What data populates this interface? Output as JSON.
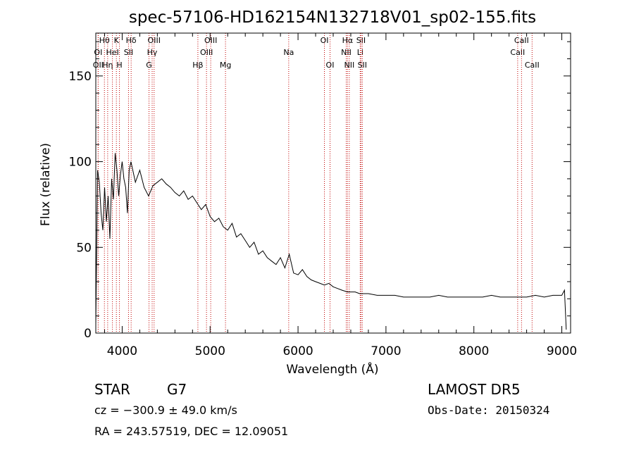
{
  "chart_data": {
    "type": "line",
    "title": "spec-57106-HD162154N132718V01_sp02-155.fits",
    "xlabel": "Wavelength (Å)",
    "ylabel": "Flux (relative)",
    "xlim": [
      3700,
      9100
    ],
    "ylim": [
      0,
      175
    ],
    "xticks": [
      "4000",
      "5000",
      "6000",
      "7000",
      "8000",
      "9000"
    ],
    "yticks": [
      "0",
      "50",
      "100",
      "150"
    ],
    "grid": false,
    "series": [
      {
        "x": [
          3700,
          3720,
          3740,
          3760,
          3780,
          3800,
          3820,
          3840,
          3860,
          3880,
          3900,
          3920,
          3940,
          3960,
          3980,
          4000,
          4020,
          4040,
          4060,
          4080,
          4100,
          4150,
          4200,
          4250,
          4300,
          4350,
          4400,
          4450,
          4500,
          4550,
          4600,
          4650,
          4700,
          4750,
          4800,
          4850,
          4900,
          4950,
          5000,
          5050,
          5100,
          5150,
          5200,
          5250,
          5300,
          5350,
          5400,
          5450,
          5500,
          5550,
          5600,
          5650,
          5700,
          5750,
          5800,
          5850,
          5900,
          5950,
          6000,
          6050,
          6100,
          6150,
          6200,
          6250,
          6300,
          6350,
          6400,
          6450,
          6500,
          6563,
          6600,
          6650,
          6700,
          6750,
          6800,
          6900,
          7000,
          7100,
          7200,
          7300,
          7400,
          7500,
          7600,
          7700,
          7800,
          7900,
          8000,
          8100,
          8200,
          8300,
          8400,
          8500,
          8600,
          8700,
          8800,
          8900,
          9000,
          9030,
          9050
        ],
        "y": [
          5,
          95,
          88,
          70,
          60,
          85,
          65,
          80,
          55,
          90,
          78,
          105,
          95,
          80,
          92,
          100,
          90,
          85,
          70,
          95,
          100,
          88,
          95,
          85,
          80,
          86,
          88,
          90,
          87,
          85,
          82,
          80,
          83,
          78,
          80,
          76,
          72,
          75,
          68,
          65,
          67,
          62,
          60,
          64,
          56,
          58,
          54,
          50,
          53,
          46,
          48,
          44,
          42,
          40,
          44,
          38,
          46,
          35,
          34,
          37,
          33,
          31,
          30,
          29,
          28,
          29,
          27,
          26,
          25,
          24,
          24,
          24,
          23,
          23,
          23,
          22,
          22,
          22,
          21,
          21,
          21,
          21,
          22,
          21,
          21,
          21,
          21,
          21,
          22,
          21,
          21,
          21,
          21,
          22,
          21,
          22,
          22,
          25,
          2
        ]
      }
    ],
    "lines": [
      {
        "label": "OII",
        "x": 3727,
        "row": 3
      },
      {
        "label": "OI",
        "x": 3727,
        "row": 2
      },
      {
        "label": "Hθ",
        "x": 3798,
        "row": 1
      },
      {
        "label": "Hη",
        "x": 3835,
        "row": 3
      },
      {
        "label": "HeI",
        "x": 3889,
        "row": 2
      },
      {
        "label": "K",
        "x": 3934,
        "row": 1
      },
      {
        "label": "H",
        "x": 3969,
        "row": 3
      },
      {
        "label": "SII",
        "x": 4072,
        "row": 2
      },
      {
        "label": "Hδ",
        "x": 4102,
        "row": 1
      },
      {
        "label": "G",
        "x": 4305,
        "row": 3
      },
      {
        "label": "Hγ",
        "x": 4341,
        "row": 2
      },
      {
        "label": "OIII",
        "x": 4363,
        "row": 1
      },
      {
        "label": "Hβ",
        "x": 4861,
        "row": 3
      },
      {
        "label": "OIII",
        "x": 4959,
        "row": 2
      },
      {
        "label": "OIII",
        "x": 5007,
        "row": 1
      },
      {
        "label": "Mg",
        "x": 5175,
        "row": 3
      },
      {
        "label": "Na",
        "x": 5894,
        "row": 2
      },
      {
        "label": "OI",
        "x": 6300,
        "row": 1
      },
      {
        "label": "OI",
        "x": 6364,
        "row": 3
      },
      {
        "label": "NII",
        "x": 6548,
        "row": 2
      },
      {
        "label": "Hα",
        "x": 6563,
        "row": 1
      },
      {
        "label": "NII",
        "x": 6583,
        "row": 3
      },
      {
        "label": "Li",
        "x": 6707,
        "row": 2
      },
      {
        "label": "SII",
        "x": 6716,
        "row": 1
      },
      {
        "label": "SII",
        "x": 6731,
        "row": 3
      },
      {
        "label": "CaII",
        "x": 8498,
        "row": 2
      },
      {
        "label": "CaII",
        "x": 8542,
        "row": 1
      },
      {
        "label": "CaII",
        "x": 8662,
        "row": 3
      }
    ],
    "line_color": "#c00000",
    "spectrum_color": "#000000"
  },
  "footer": {
    "class_label": "STAR",
    "subclass": "G7",
    "survey": "LAMOST  DR5",
    "cz": "cz = −300.9 ± 49.0 km/s",
    "obs_date": "Obs-Date: 20150324",
    "coords": "RA = 243.57519, DEC =  12.09051"
  }
}
